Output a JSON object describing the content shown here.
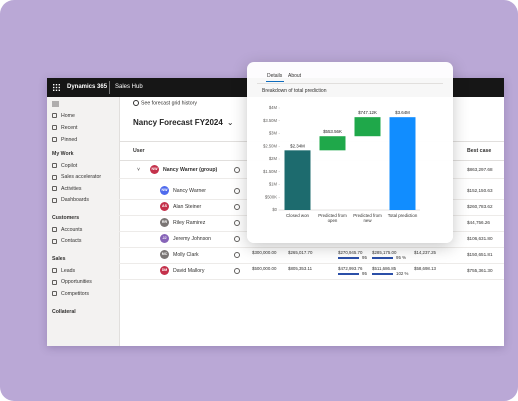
{
  "app": {
    "product": "Dynamics 365",
    "area": "Sales Hub"
  },
  "nav": {
    "top": [
      "Home",
      "Recent",
      "Pinned"
    ],
    "groups": [
      {
        "title": "My Work",
        "items": [
          "Copilot",
          "Sales accelerator",
          "Activities",
          "Dashboards"
        ]
      },
      {
        "title": "Customers",
        "items": [
          "Accounts",
          "Contacts"
        ]
      },
      {
        "title": "Sales",
        "items": [
          "Leads",
          "Opportunities",
          "Competitors"
        ]
      },
      {
        "title": "Collateral",
        "items": []
      }
    ]
  },
  "forecast": {
    "history_link": "See forecast grid history",
    "title": "Nancy Forecast FY2024",
    "columns": [
      "User",
      "Best case"
    ],
    "rows": [
      {
        "initials": "NW",
        "name": "Nancy Warner (group)",
        "color": "#c4314b",
        "cells": [],
        "best_case": "$863,297.68"
      },
      {
        "initials": "NW",
        "name": "Nancy Warner",
        "color": "#4f6bed",
        "cells": [],
        "best_case": "$152,150.63"
      },
      {
        "initials": "AS",
        "name": "Alan Steiner",
        "color": "#c4314b",
        "cells": [],
        "best_case": "$260,783.62"
      },
      {
        "initials": "RR",
        "name": "Riley Ramirez",
        "color": "#7a7574",
        "cells": [],
        "best_case": "$44,756.26"
      },
      {
        "initials": "JJ",
        "name": "Jeremy Johnson",
        "color": "#8764b8",
        "cells": [],
        "best_case": "$106,631.80"
      },
      {
        "initials": "MC",
        "name": "Molly Clark",
        "color": "#7a7574",
        "cells": [
          "$300,000.00",
          "$265,017.70",
          "$270,945.70",
          "95",
          "$285,175.00",
          "95 %",
          "$14,237.25"
        ],
        "best_case": "$150,651.81"
      },
      {
        "initials": "DM",
        "name": "David Mallory",
        "color": "#c4314b",
        "cells": [
          "$500,000.00",
          "$805,353.11",
          "$472,993.76",
          "95",
          "$511,686.85",
          "102 %",
          "$58,698.13"
        ],
        "best_case": "$755,361.30"
      }
    ]
  },
  "card": {
    "tabs": [
      "Details",
      "About"
    ]
  },
  "chart_data": {
    "type": "waterfall",
    "title": "Breakdown of total prediction",
    "categories": [
      "Closed won",
      "Predicted from open",
      "Predicted from new",
      "Total prediction"
    ],
    "values": [
      2340000,
      553560,
      747120,
      3640000
    ],
    "value_labels": [
      "$2.34M",
      "$553.56K",
      "$747.12K",
      "$3.64M"
    ],
    "colors": [
      "#1d6b6e",
      "#1fa84a",
      "#1fa84a",
      "#118dff"
    ],
    "total_index": 3,
    "ylim": [
      0,
      4000000
    ],
    "yticks": [
      {
        "value": 0,
        "label": "$0"
      },
      {
        "value": 500000,
        "label": "$500K"
      },
      {
        "value": 1000000,
        "label": "$1M"
      },
      {
        "value": 1500000,
        "label": "$1.50M"
      },
      {
        "value": 2000000,
        "label": "$2M"
      },
      {
        "value": 2500000,
        "label": "$2.50M"
      },
      {
        "value": 3000000,
        "label": "$3M"
      },
      {
        "value": 3500000,
        "label": "$3.50M"
      },
      {
        "value": 4000000,
        "label": "$4M"
      }
    ],
    "grid": false
  }
}
